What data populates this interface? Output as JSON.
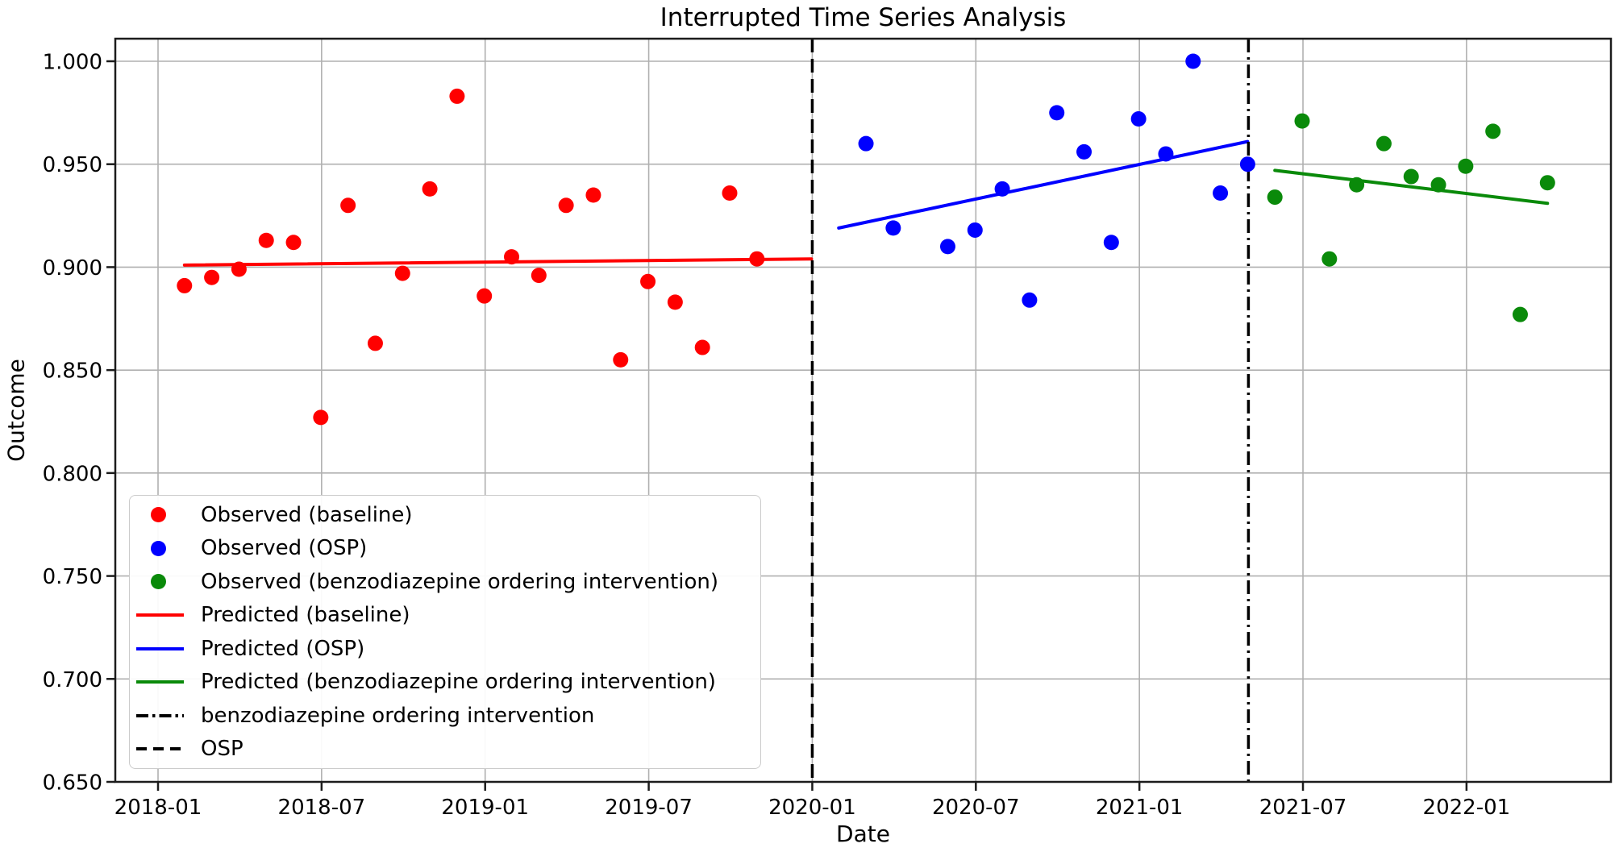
{
  "chart_data": {
    "type": "scatter",
    "title": "Interrupted Time Series Analysis",
    "xlabel": "Date",
    "ylabel": "Outcome",
    "grid": true,
    "legend_position": "lower left",
    "ylim": [
      0.65,
      1.011
    ],
    "xlim_months_from_2018_01": [
      -1.57,
      53.3
    ],
    "x_ticks": [
      "2018-01",
      "2018-07",
      "2019-01",
      "2019-07",
      "2020-01",
      "2020-07",
      "2021-01",
      "2021-07",
      "2022-01"
    ],
    "y_tick_labels": [
      "1.000",
      "0.950",
      "0.900",
      "0.850",
      "0.800",
      "0.750",
      "0.700",
      "0.650"
    ],
    "y_tick_values": [
      1.0,
      0.95,
      0.9,
      0.85,
      0.8,
      0.75,
      0.7,
      0.65
    ],
    "month_end_offset": 0.97,
    "series": [
      {
        "name": "Observed (baseline)",
        "kind": "scatter",
        "color": "#ff0000",
        "dates": [
          "2018-01",
          "2018-02",
          "2018-03",
          "2018-04",
          "2018-05",
          "2018-06",
          "2018-07",
          "2018-08",
          "2018-09",
          "2018-10",
          "2018-11",
          "2018-12",
          "2019-01",
          "2019-02",
          "2019-03",
          "2019-04",
          "2019-05",
          "2019-06",
          "2019-07",
          "2019-08",
          "2019-09",
          "2019-10"
        ],
        "values": [
          0.891,
          0.895,
          0.899,
          0.913,
          0.912,
          0.827,
          0.93,
          0.863,
          0.897,
          0.938,
          0.983,
          0.886,
          0.905,
          0.896,
          0.93,
          0.935,
          0.855,
          0.893,
          0.883,
          0.861,
          0.936,
          0.904
        ]
      },
      {
        "name": "Observed (OSP)",
        "kind": "scatter",
        "color": "#0000ff",
        "dates": [
          "2020-02",
          "2020-03",
          "2020-05",
          "2020-06",
          "2020-07",
          "2020-08",
          "2020-09",
          "2020-10",
          "2020-11",
          "2020-12",
          "2021-01",
          "2021-02",
          "2021-03",
          "2021-04"
        ],
        "values": [
          0.96,
          0.919,
          0.91,
          0.918,
          0.938,
          0.884,
          0.975,
          0.956,
          0.912,
          0.972,
          0.955,
          1.0,
          0.936,
          0.95
        ]
      },
      {
        "name": "Observed (benzodiazepine ordering intervention)",
        "kind": "scatter",
        "color": "#0a8a0a",
        "dates": [
          "2021-05",
          "2021-06",
          "2021-07",
          "2021-08",
          "2021-09",
          "2021-10",
          "2021-11",
          "2021-12",
          "2022-01",
          "2022-02",
          "2022-03"
        ],
        "values": [
          0.934,
          0.971,
          0.904,
          0.94,
          0.96,
          0.944,
          0.94,
          0.949,
          0.966,
          0.877,
          0.941
        ]
      },
      {
        "name": "Predicted (baseline)",
        "kind": "line",
        "color": "#ff0000",
        "dates": [
          "2018-01",
          "2019-12"
        ],
        "values": [
          0.901,
          0.904
        ]
      },
      {
        "name": "Predicted (OSP)",
        "kind": "line",
        "color": "#0000ff",
        "dates": [
          "2020-01",
          "2021-04"
        ],
        "values": [
          0.919,
          0.961
        ]
      },
      {
        "name": "Predicted (benzodiazepine ordering intervention)",
        "kind": "line",
        "color": "#0a8a0a",
        "dates": [
          "2021-05",
          "2022-03"
        ],
        "values": [
          0.947,
          0.931
        ]
      }
    ],
    "vlines": [
      {
        "label": "OSP",
        "date": "2020-01-01",
        "style": "dashed",
        "color": "#000000"
      },
      {
        "label": "benzodiazepine ordering intervention",
        "date": "2021-05-01",
        "style": "dashdot",
        "color": "#000000"
      }
    ],
    "legend": {
      "entries": [
        {
          "label": "Observed (baseline)",
          "marker": "dot",
          "color": "#ff0000"
        },
        {
          "label": "Observed (OSP)",
          "marker": "dot",
          "color": "#0000ff"
        },
        {
          "label": "Observed (benzodiazepine ordering intervention)",
          "marker": "dot",
          "color": "#0a8a0a"
        },
        {
          "label": "Predicted (baseline)",
          "marker": "line",
          "color": "#ff0000"
        },
        {
          "label": "Predicted (OSP)",
          "marker": "line",
          "color": "#0000ff"
        },
        {
          "label": "Predicted (benzodiazepine ordering intervention)",
          "marker": "line",
          "color": "#0a8a0a"
        },
        {
          "label": "benzodiazepine ordering intervention",
          "marker": "dashdot",
          "color": "#000000"
        },
        {
          "label": "OSP",
          "marker": "dashed",
          "color": "#000000"
        }
      ]
    },
    "style": {
      "grid_color": "#b0b0b0",
      "spine_color": "#1c1c1c",
      "marker_radius": 9.5,
      "trend_line_width": 4,
      "vline_width": 3.5
    }
  }
}
